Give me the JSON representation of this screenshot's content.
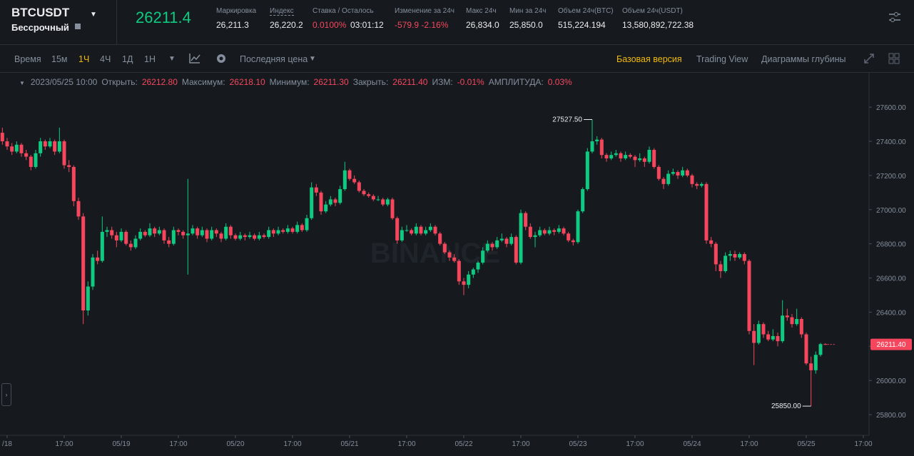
{
  "header": {
    "symbol": "BTCUSDT",
    "contract": "Бессрочный",
    "last_price": "26211.4",
    "stats": [
      {
        "label": "Маркировка",
        "value": "26,211.3"
      },
      {
        "label": "Индекс",
        "value": "26,220.2"
      },
      {
        "label": "Ставка / Осталось",
        "value": "0.0100%",
        "value2": "03:01:12"
      },
      {
        "label": "Изменение за 24ч",
        "value": "-579.9 -2.16%"
      },
      {
        "label": "Макс 24ч",
        "value": "26,834.0"
      },
      {
        "label": "Мин за 24ч",
        "value": "25,850.0"
      },
      {
        "label": "Объем 24ч(BTC)",
        "value": "515,224.194"
      },
      {
        "label": "Объем 24ч(USDT)",
        "value": "13,580,892,722.38"
      }
    ]
  },
  "toolbar": {
    "intervals": [
      "Время",
      "15м",
      "1Ч",
      "4Ч",
      "1Д",
      "1Н"
    ],
    "price_type": "Последняя цена",
    "views": [
      "Базовая версия",
      "Trading View",
      "Диаграммы глубины"
    ]
  },
  "legend": {
    "date": "2023/05/25 10:00",
    "items": [
      {
        "label": "Открыть:",
        "value": "26212.80"
      },
      {
        "label": "Максимум:",
        "value": "26218.10"
      },
      {
        "label": "Минимум:",
        "value": "26211.30"
      },
      {
        "label": "Закрыть:",
        "value": "26211.40"
      },
      {
        "label": "ИЗМ:",
        "value": "-0.01%"
      },
      {
        "label": "АМПЛИТУДА:",
        "value": "0.03%"
      }
    ]
  },
  "chart_data": {
    "type": "candlestick",
    "watermark": "BINANCE",
    "up_color": "#0ecb81",
    "down_color": "#f6465d",
    "ylim": [
      25700,
      27705
    ],
    "yticks": [
      {
        "value": 25800,
        "label": "25800.00"
      },
      {
        "value": 26000,
        "label": "26000.00"
      },
      {
        "value": 26200,
        "label": "26200.00"
      },
      {
        "value": 26400,
        "label": "26400.00"
      },
      {
        "value": 26600,
        "label": "26600.00"
      },
      {
        "value": 26800,
        "label": "26800.00"
      },
      {
        "value": 27000,
        "label": "27000.00"
      },
      {
        "value": 27200,
        "label": "27200.00"
      },
      {
        "value": 27400,
        "label": "27400.00"
      },
      {
        "value": 27600,
        "label": "27600.00"
      }
    ],
    "xlim": [
      -0.5,
      182.2
    ],
    "xticks": [
      {
        "value": 1,
        "label": "/18"
      },
      {
        "value": 13,
        "label": "17:00"
      },
      {
        "value": 25,
        "label": "05/19"
      },
      {
        "value": 37,
        "label": "17:00"
      },
      {
        "value": 49,
        "label": "05/20"
      },
      {
        "value": 61,
        "label": "17:00"
      },
      {
        "value": 73,
        "label": "05/21"
      },
      {
        "value": 85,
        "label": "17:00"
      },
      {
        "value": 97,
        "label": "05/22"
      },
      {
        "value": 109,
        "label": "17:00"
      },
      {
        "value": 121,
        "label": "05/23"
      },
      {
        "value": 133,
        "label": "17:00"
      },
      {
        "value": 145,
        "label": "05/24"
      },
      {
        "value": 157,
        "label": "17:00"
      },
      {
        "value": 169,
        "label": "05/25"
      },
      {
        "value": 181,
        "label": "17:00"
      }
    ],
    "last_price": {
      "value": 26211.4,
      "label": "26211.40"
    },
    "high_marker": {
      "value": 27527.5,
      "label": "27527.50"
    },
    "low_marker": {
      "value": 25850,
      "label": "25850.00"
    },
    "ohlc": [
      [
        27450,
        27480,
        27380,
        27400
      ],
      [
        27400,
        27420,
        27350,
        27370
      ],
      [
        27370,
        27390,
        27320,
        27340
      ],
      [
        27340,
        27400,
        27330,
        27380
      ],
      [
        27380,
        27390,
        27310,
        27330
      ],
      [
        27330,
        27350,
        27290,
        27310
      ],
      [
        27310,
        27320,
        27230,
        27250
      ],
      [
        27250,
        27350,
        27240,
        27330
      ],
      [
        27330,
        27420,
        27310,
        27400
      ],
      [
        27400,
        27410,
        27350,
        27370
      ],
      [
        27370,
        27420,
        27360,
        27400
      ],
      [
        27400,
        27410,
        27320,
        27340
      ],
      [
        27340,
        27480,
        27330,
        27400
      ],
      [
        27400,
        27410,
        27240,
        27260
      ],
      [
        27260,
        27290,
        27220,
        27250
      ],
      [
        27250,
        27260,
        27020,
        27050
      ],
      [
        27050,
        27070,
        26940,
        26960
      ],
      [
        26960,
        26980,
        26330,
        26410
      ],
      [
        26410,
        26580,
        26380,
        26550
      ],
      [
        26550,
        26740,
        26530,
        26720
      ],
      [
        26720,
        26760,
        26680,
        26700
      ],
      [
        26700,
        26960,
        26690,
        26870
      ],
      [
        26870,
        26900,
        26840,
        26880
      ],
      [
        26880,
        26900,
        26830,
        26850
      ],
      [
        26850,
        26870,
        26780,
        26820
      ],
      [
        26820,
        26890,
        26810,
        26870
      ],
      [
        26870,
        26880,
        26790,
        26800
      ],
      [
        26800,
        26820,
        26760,
        26780
      ],
      [
        26780,
        26850,
        26770,
        26830
      ],
      [
        26830,
        26890,
        26820,
        26870
      ],
      [
        26870,
        26880,
        26840,
        26850
      ],
      [
        26850,
        26920,
        26840,
        26890
      ],
      [
        26890,
        26900,
        26840,
        26860
      ],
      [
        26860,
        26900,
        26850,
        26880
      ],
      [
        26880,
        26890,
        26800,
        26820
      ],
      [
        26820,
        26840,
        26780,
        26800
      ],
      [
        26800,
        26900,
        26790,
        26880
      ],
      [
        26880,
        26890,
        26850,
        26870
      ],
      [
        26870,
        26880,
        26830,
        26850
      ],
      [
        26850,
        27180,
        26620,
        26860
      ],
      [
        26860,
        26910,
        26850,
        26890
      ],
      [
        26890,
        26900,
        26830,
        26850
      ],
      [
        26850,
        26900,
        26840,
        26880
      ],
      [
        26880,
        26890,
        26810,
        26830
      ],
      [
        26830,
        26900,
        26820,
        26880
      ],
      [
        26880,
        26890,
        26840,
        26860
      ],
      [
        26860,
        26870,
        26810,
        26830
      ],
      [
        26830,
        26920,
        26820,
        26900
      ],
      [
        26900,
        26910,
        26830,
        26850
      ],
      [
        26850,
        26860,
        26820,
        26830
      ],
      [
        26830,
        26870,
        26820,
        26850
      ],
      [
        26850,
        26860,
        26820,
        26840
      ],
      [
        26840,
        26870,
        26830,
        26850
      ],
      [
        26850,
        26860,
        26820,
        26830
      ],
      [
        26830,
        26870,
        26820,
        26850
      ],
      [
        26850,
        26860,
        26830,
        26840
      ],
      [
        26840,
        26900,
        26830,
        26880
      ],
      [
        26880,
        26890,
        26840,
        26860
      ],
      [
        26860,
        26900,
        26850,
        26880
      ],
      [
        26880,
        26890,
        26860,
        26870
      ],
      [
        26870,
        26910,
        26860,
        26890
      ],
      [
        26890,
        26900,
        26860,
        26870
      ],
      [
        26870,
        26930,
        26860,
        26910
      ],
      [
        26910,
        26920,
        26870,
        26880
      ],
      [
        26880,
        26970,
        26870,
        26950
      ],
      [
        26950,
        27160,
        26940,
        27130
      ],
      [
        27130,
        27150,
        27080,
        27100
      ],
      [
        27100,
        27110,
        26970,
        26990
      ],
      [
        26990,
        27050,
        26980,
        27030
      ],
      [
        27030,
        27080,
        27020,
        27060
      ],
      [
        27060,
        27070,
        27020,
        27040
      ],
      [
        27040,
        27140,
        27030,
        27120
      ],
      [
        27120,
        27280,
        27110,
        27230
      ],
      [
        27230,
        27240,
        27170,
        27180
      ],
      [
        27180,
        27200,
        27150,
        27160
      ],
      [
        27160,
        27170,
        27100,
        27110
      ],
      [
        27110,
        27120,
        27080,
        27090
      ],
      [
        27090,
        27100,
        27070,
        27080
      ],
      [
        27080,
        27090,
        27050,
        27060
      ],
      [
        27060,
        27080,
        27050,
        27060
      ],
      [
        27060,
        27070,
        27020,
        27030
      ],
      [
        27030,
        27070,
        27020,
        27060
      ],
      [
        27060,
        27070,
        26940,
        26950
      ],
      [
        26950,
        26960,
        26800,
        26820
      ],
      [
        26820,
        26900,
        26810,
        26880
      ],
      [
        26880,
        26910,
        26870,
        26880
      ],
      [
        26880,
        26890,
        26850,
        26860
      ],
      [
        26860,
        26920,
        26850,
        26900
      ],
      [
        26900,
        26910,
        26850,
        26860
      ],
      [
        26860,
        26900,
        26850,
        26880
      ],
      [
        26880,
        26920,
        26870,
        26900
      ],
      [
        26900,
        26910,
        26850,
        26860
      ],
      [
        26860,
        26870,
        26790,
        26800
      ],
      [
        26800,
        26810,
        26740,
        26750
      ],
      [
        26750,
        26760,
        26700,
        26720
      ],
      [
        26720,
        26740,
        26690,
        26700
      ],
      [
        26700,
        26710,
        26560,
        26580
      ],
      [
        26580,
        26600,
        26500,
        26560
      ],
      [
        26560,
        26640,
        26540,
        26620
      ],
      [
        26620,
        26660,
        26600,
        26650
      ],
      [
        26650,
        26700,
        26630,
        26690
      ],
      [
        26690,
        26780,
        26680,
        26760
      ],
      [
        26760,
        26820,
        26750,
        26800
      ],
      [
        26800,
        26810,
        26760,
        26780
      ],
      [
        26780,
        26840,
        26770,
        26820
      ],
      [
        26820,
        26860,
        26810,
        26830
      ],
      [
        26830,
        26840,
        26780,
        26800
      ],
      [
        26800,
        26860,
        26790,
        26840
      ],
      [
        26840,
        26850,
        26680,
        26690
      ],
      [
        26690,
        27000,
        26680,
        26980
      ],
      [
        26980,
        26990,
        26880,
        26900
      ],
      [
        26900,
        26920,
        26830,
        26840
      ],
      [
        26840,
        26870,
        26780,
        26850
      ],
      [
        26850,
        26900,
        26840,
        26880
      ],
      [
        26880,
        26890,
        26850,
        26860
      ],
      [
        26860,
        26900,
        26850,
        26880
      ],
      [
        26880,
        26890,
        26850,
        26870
      ],
      [
        26870,
        26910,
        26860,
        26890
      ],
      [
        26890,
        26900,
        26850,
        26860
      ],
      [
        26860,
        26870,
        26810,
        26820
      ],
      [
        26820,
        26830,
        26790,
        26810
      ],
      [
        26810,
        27000,
        26800,
        26990
      ],
      [
        26990,
        27130,
        26980,
        27120
      ],
      [
        27120,
        27360,
        27110,
        27340
      ],
      [
        27340,
        27527.5,
        27330,
        27400
      ],
      [
        27400,
        27430,
        27380,
        27410
      ],
      [
        27410,
        27420,
        27300,
        27320
      ],
      [
        27320,
        27330,
        27280,
        27300
      ],
      [
        27300,
        27340,
        27290,
        27320
      ],
      [
        27320,
        27350,
        27310,
        27330
      ],
      [
        27330,
        27340,
        27280,
        27300
      ],
      [
        27300,
        27340,
        27290,
        27320
      ],
      [
        27320,
        27330,
        27300,
        27310
      ],
      [
        27310,
        27320,
        27250,
        27290
      ],
      [
        27290,
        27330,
        27280,
        27300
      ],
      [
        27300,
        27310,
        27250,
        27280
      ],
      [
        27280,
        27370,
        27270,
        27350
      ],
      [
        27350,
        27360,
        27240,
        27250
      ],
      [
        27250,
        27260,
        27170,
        27180
      ],
      [
        27180,
        27190,
        27120,
        27150
      ],
      [
        27150,
        27230,
        27140,
        27210
      ],
      [
        27210,
        27240,
        27200,
        27220
      ],
      [
        27220,
        27230,
        27180,
        27200
      ],
      [
        27200,
        27250,
        27190,
        27230
      ],
      [
        27230,
        27240,
        27190,
        27200
      ],
      [
        27200,
        27210,
        27130,
        27150
      ],
      [
        27150,
        27160,
        27120,
        27140
      ],
      [
        27140,
        27160,
        27130,
        27150
      ],
      [
        27150,
        27160,
        26800,
        26820
      ],
      [
        26820,
        26840,
        26780,
        26800
      ],
      [
        26800,
        26810,
        26640,
        26680
      ],
      [
        26680,
        26700,
        26600,
        26640
      ],
      [
        26640,
        26750,
        26630,
        26730
      ],
      [
        26730,
        26760,
        26700,
        26740
      ],
      [
        26740,
        26760,
        26700,
        26720
      ],
      [
        26720,
        26750,
        26710,
        26740
      ],
      [
        26740,
        26750,
        26680,
        26700
      ],
      [
        26700,
        26710,
        26270,
        26290
      ],
      [
        26290,
        26330,
        26090,
        26220
      ],
      [
        26220,
        26350,
        26210,
        26330
      ],
      [
        26330,
        26340,
        26250,
        26270
      ],
      [
        26270,
        26290,
        26230,
        26240
      ],
      [
        26240,
        26300,
        26230,
        26260
      ],
      [
        26260,
        26280,
        26200,
        26230
      ],
      [
        26230,
        26470,
        26220,
        26380
      ],
      [
        26380,
        26420,
        26350,
        26370
      ],
      [
        26370,
        26390,
        26310,
        26330
      ],
      [
        26330,
        26420,
        26320,
        26360
      ],
      [
        26360,
        26370,
        26250,
        26270
      ],
      [
        26270,
        26280,
        26090,
        26100
      ],
      [
        26100,
        26140,
        25850,
        26060
      ],
      [
        26060,
        26170,
        26040,
        26150
      ],
      [
        26150,
        26220,
        26140,
        26212.8
      ],
      [
        26212.8,
        26218.1,
        26211.3,
        26211.4
      ]
    ]
  }
}
